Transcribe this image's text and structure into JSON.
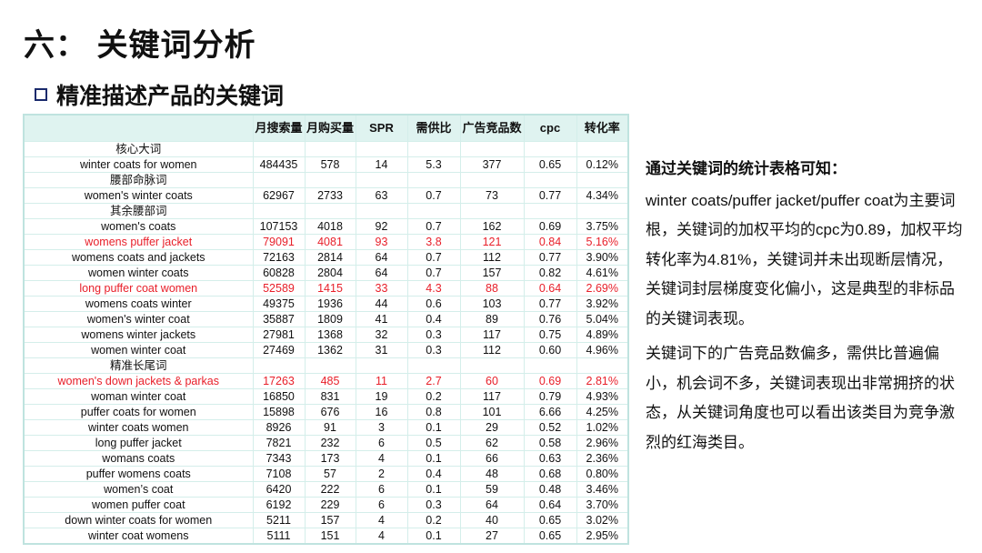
{
  "title": "六： 关键词分析",
  "subtitle": "精准描述产品的关键词",
  "table": {
    "headers": [
      "",
      "月搜索量",
      "月购买量",
      "SPR",
      "需供比",
      "广告竞品数",
      "cpc",
      "转化率"
    ],
    "rows": [
      {
        "section": "核心大词"
      },
      {
        "cells": [
          "winter coats for women",
          "484435",
          "578",
          "14",
          "5.3",
          "377",
          "0.65",
          "0.12%"
        ]
      },
      {
        "section": "腰部命脉词"
      },
      {
        "cells": [
          "women's winter coats",
          "62967",
          "2733",
          "63",
          "0.7",
          "73",
          "0.77",
          "4.34%"
        ]
      },
      {
        "section": "其余腰部词"
      },
      {
        "cells": [
          "women's coats",
          "107153",
          "4018",
          "92",
          "0.7",
          "162",
          "0.69",
          "3.75%"
        ]
      },
      {
        "cells": [
          "womens puffer jacket",
          "79091",
          "4081",
          "93",
          "3.8",
          "121",
          "0.84",
          "5.16%"
        ],
        "highlight": true
      },
      {
        "cells": [
          "womens coats and jackets",
          "72163",
          "2814",
          "64",
          "0.7",
          "112",
          "0.77",
          "3.90%"
        ]
      },
      {
        "cells": [
          "women winter coats",
          "60828",
          "2804",
          "64",
          "0.7",
          "157",
          "0.82",
          "4.61%"
        ]
      },
      {
        "cells": [
          "long puffer coat women",
          "52589",
          "1415",
          "33",
          "4.3",
          "88",
          "0.64",
          "2.69%"
        ],
        "highlight": true
      },
      {
        "cells": [
          "womens coats winter",
          "49375",
          "1936",
          "44",
          "0.6",
          "103",
          "0.77",
          "3.92%"
        ]
      },
      {
        "cells": [
          "women's winter coat",
          "35887",
          "1809",
          "41",
          "0.4",
          "89",
          "0.76",
          "5.04%"
        ]
      },
      {
        "cells": [
          "womens winter jackets",
          "27981",
          "1368",
          "32",
          "0.3",
          "117",
          "0.75",
          "4.89%"
        ]
      },
      {
        "cells": [
          "women winter coat",
          "27469",
          "1362",
          "31",
          "0.3",
          "112",
          "0.60",
          "4.96%"
        ]
      },
      {
        "section": "精准长尾词"
      },
      {
        "cells": [
          "women's down jackets & parkas",
          "17263",
          "485",
          "11",
          "2.7",
          "60",
          "0.69",
          "2.81%"
        ],
        "highlight": true
      },
      {
        "cells": [
          "woman winter coat",
          "16850",
          "831",
          "19",
          "0.2",
          "117",
          "0.79",
          "4.93%"
        ]
      },
      {
        "cells": [
          "puffer coats for women",
          "15898",
          "676",
          "16",
          "0.8",
          "101",
          "6.66",
          "4.25%"
        ]
      },
      {
        "cells": [
          "winter coats women",
          "8926",
          "91",
          "3",
          "0.1",
          "29",
          "0.52",
          "1.02%"
        ]
      },
      {
        "cells": [
          "long puffer jacket",
          "7821",
          "232",
          "6",
          "0.5",
          "62",
          "0.58",
          "2.96%"
        ]
      },
      {
        "cells": [
          "womans coats",
          "7343",
          "173",
          "4",
          "0.1",
          "66",
          "0.63",
          "2.36%"
        ]
      },
      {
        "cells": [
          "puffer womens coats",
          "7108",
          "57",
          "2",
          "0.4",
          "48",
          "0.68",
          "0.80%"
        ]
      },
      {
        "cells": [
          "women’s coat",
          "6420",
          "222",
          "6",
          "0.1",
          "59",
          "0.48",
          "3.46%"
        ]
      },
      {
        "cells": [
          "women puffer coat",
          "6192",
          "229",
          "6",
          "0.3",
          "64",
          "0.64",
          "3.70%"
        ]
      },
      {
        "cells": [
          "down winter coats for women",
          "5211",
          "157",
          "4",
          "0.2",
          "40",
          "0.65",
          "3.02%"
        ]
      },
      {
        "cells": [
          "winter coat womens",
          "5111",
          "151",
          "4",
          "0.1",
          "27",
          "0.65",
          "2.95%"
        ]
      }
    ]
  },
  "analysis": {
    "lead": "通过关键词的统计表格可知：",
    "paragraphs": [
      "winter coats/puffer jacket/puffer coat为主要词根，关键词的加权平均的cpc为0.89，加权平均转化率为4.81%，关键词并未出现断层情况，关键词封层梯度变化偏小，这是典型的非标品的关键词表现。",
      "关键词下的广告竞品数偏多，需供比普遍偏小，机会词不多，关键词表现出非常拥挤的状态，从关键词角度也可以看出该类目为竞争激烈的红海类目。"
    ]
  },
  "colors": {
    "highlight": "#e8202a",
    "header_bg": "#dff3f0",
    "grid": "#d4eeea",
    "bullet": "#1a2a6c"
  }
}
